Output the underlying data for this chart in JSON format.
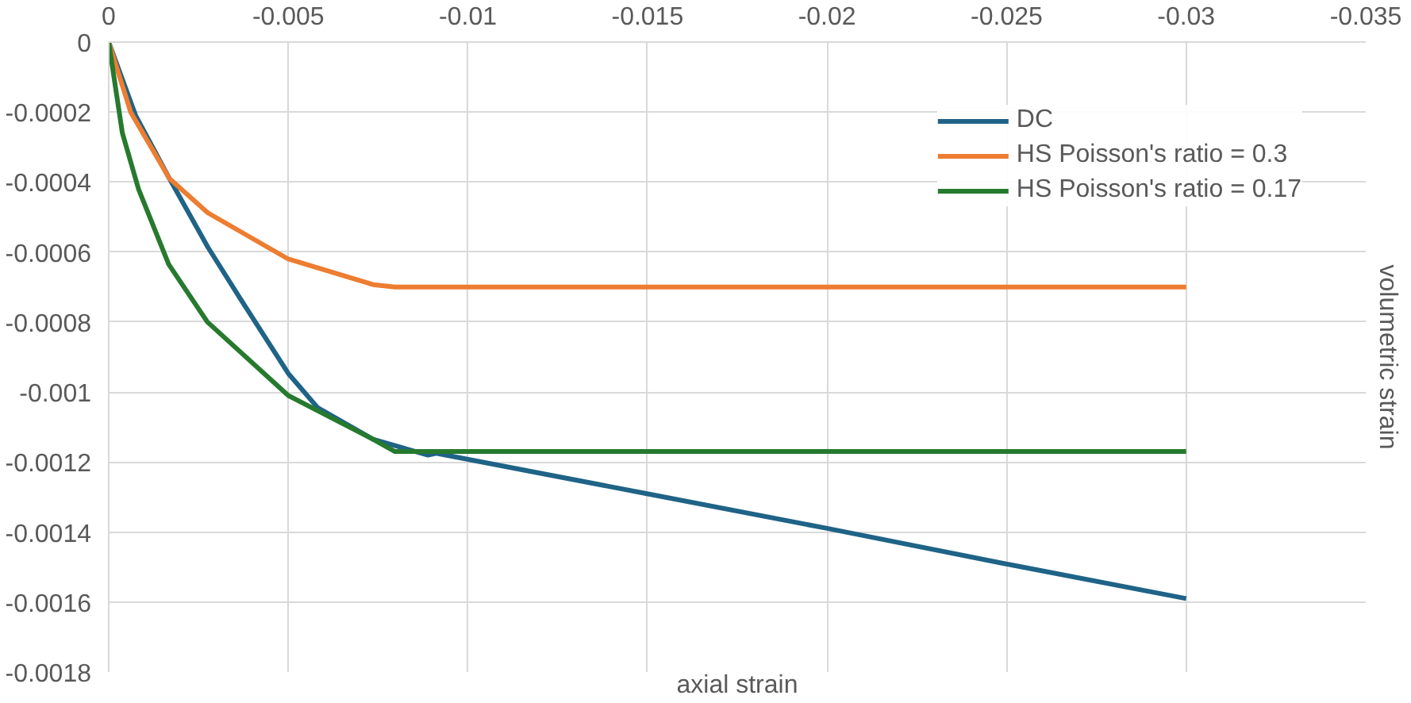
{
  "chart_data": {
    "type": "line",
    "xlabel": "axial strain",
    "ylabel": "volumetric strain",
    "xlim": [
      0,
      -0.035
    ],
    "xticks": [
      0,
      -0.005,
      -0.01,
      -0.015,
      -0.02,
      -0.025,
      -0.03,
      -0.035
    ],
    "ylim": [
      -0.0018,
      0
    ],
    "yticks": [
      0,
      -0.0002,
      -0.0004,
      -0.0006,
      -0.0008,
      -0.001,
      -0.0012,
      -0.0014,
      -0.0016,
      -0.0018
    ],
    "grid": true,
    "legend": "top right",
    "marker": "none",
    "line_style": "solid",
    "series": [
      {
        "name": "DC",
        "color": "#1f6387",
        "x": [
          0,
          -0.00075,
          -0.00169,
          -0.00276,
          -0.00367,
          -0.005,
          -0.00582,
          -0.00736,
          -0.00889,
          -0.00912,
          -0.01496,
          -0.02003,
          -0.02493,
          -0.03
        ],
        "values": [
          0,
          -0.00021,
          -0.00039,
          -0.000586,
          -0.000734,
          -0.000947,
          -0.001045,
          -0.001135,
          -0.00118,
          -0.001175,
          -0.00129,
          -0.00139,
          -0.00149,
          -0.00159
        ]
      },
      {
        "name": "HS Poisson's ratio = 0.3",
        "color": "#ed7d31",
        "x": [
          0,
          -0.00061,
          -0.00169,
          -0.00276,
          -0.005,
          -0.00736,
          -0.00797,
          -0.03
        ],
        "values": [
          0,
          -0.0002,
          -0.00039,
          -0.000488,
          -0.00062,
          -0.000693,
          -0.0007,
          -0.0007
        ]
      },
      {
        "name": "HS Poisson's ratio = 0.17",
        "color": "#267a2e",
        "x": [
          0,
          -0.00038,
          -0.00083,
          -0.00167,
          -0.00275,
          -0.005,
          -0.00736,
          -0.00797,
          -0.03
        ],
        "values": [
          0,
          -0.00026,
          -0.00042,
          -0.000635,
          -0.0008,
          -0.00101,
          -0.001135,
          -0.00117,
          -0.00117
        ]
      }
    ]
  }
}
